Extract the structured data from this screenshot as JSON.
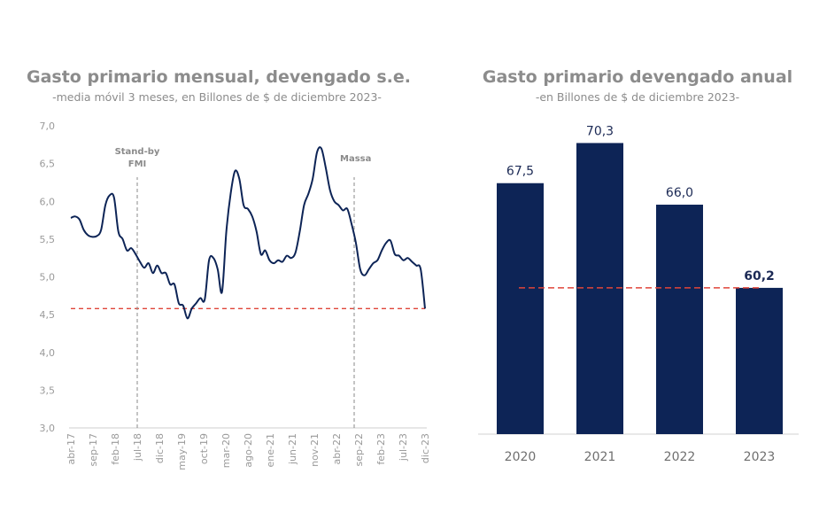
{
  "left": {
    "title": "Gasto primario mensual, devengado s.e.",
    "subtitle": "-media móvil 3 meses, en Billones de $ de diciembre 2023-"
  },
  "right": {
    "title": "Gasto primario devengado anual",
    "subtitle": "-en Billones de $ de diciembre 2023-"
  },
  "colors": {
    "series": "#0d2456",
    "reference": "#e0453a",
    "marker": "#8a8a8a"
  },
  "chart_data": [
    {
      "type": "line",
      "title": "Gasto primario mensual, devengado s.e.",
      "subtitle": "-media móvil 3 meses, en Billones de $ de diciembre 2023-",
      "ylim": [
        3.0,
        7.0
      ],
      "yticks": [
        "3,0",
        "3,5",
        "4,0",
        "4,5",
        "5,0",
        "5,5",
        "6,0",
        "6,5",
        "7,0"
      ],
      "xticks": [
        "abr-17",
        "sep-17",
        "feb-18",
        "jul-18",
        "dic-18",
        "may-19",
        "oct-19",
        "mar-20",
        "ago-20",
        "ene-21",
        "jun-21",
        "nov-21",
        "abr-22",
        "sep-22",
        "feb-23",
        "jul-23",
        "dic-23"
      ],
      "x_start": "abr-17",
      "x_end": "dic-23",
      "values": [
        5.78,
        5.8,
        5.76,
        5.62,
        5.55,
        5.53,
        5.54,
        5.62,
        5.95,
        6.08,
        6.05,
        5.6,
        5.5,
        5.35,
        5.38,
        5.3,
        5.2,
        5.12,
        5.18,
        5.05,
        5.15,
        5.05,
        5.05,
        4.9,
        4.9,
        4.65,
        4.62,
        4.45,
        4.58,
        4.65,
        4.72,
        4.7,
        5.22,
        5.25,
        5.1,
        4.8,
        5.6,
        6.1,
        6.4,
        6.3,
        5.95,
        5.9,
        5.8,
        5.6,
        5.3,
        5.35,
        5.22,
        5.18,
        5.22,
        5.2,
        5.28,
        5.25,
        5.32,
        5.6,
        5.95,
        6.1,
        6.3,
        6.65,
        6.7,
        6.45,
        6.15,
        6.0,
        5.95,
        5.88,
        5.9,
        5.7,
        5.45,
        5.1,
        5.02,
        5.1,
        5.18,
        5.22,
        5.35,
        5.45,
        5.48,
        5.3,
        5.28,
        5.22,
        5.25,
        5.2,
        5.15,
        5.1,
        4.58
      ],
      "reference_line": 4.58,
      "annotations": [
        {
          "label_lines": [
            "Stand-by",
            "FMI"
          ],
          "x": "jul-18"
        },
        {
          "label_lines": [
            "Massa"
          ],
          "x": "ago-22"
        }
      ]
    },
    {
      "type": "bar",
      "title": "Gasto primario devengado anual",
      "subtitle": "-en Billones de $ de diciembre 2023-",
      "categories": [
        "2020",
        "2021",
        "2022",
        "2023"
      ],
      "values": [
        67.5,
        70.3,
        66.0,
        60.2
      ],
      "value_labels": [
        "67,5",
        "70,3",
        "66,0",
        "60,2"
      ],
      "reference_line": 60.2,
      "ylim": [
        50,
        71.5
      ]
    }
  ]
}
